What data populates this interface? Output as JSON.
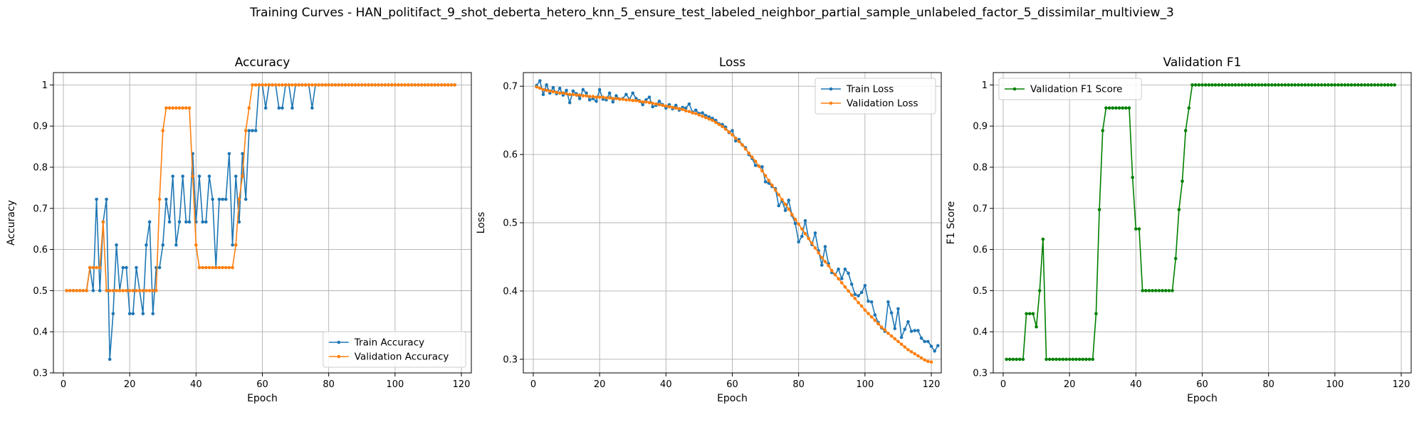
{
  "suptitle": "Training Curves - HAN_politifact_9_shot_deberta_hetero_knn_5_ensure_test_labeled_neighbor_partial_sample_unlabeled_factor_5_dissimilar_multiview_3",
  "colors": {
    "blue": "#1f77b4",
    "orange": "#ff7f0e",
    "green": "#008000",
    "grid": "#b0b0b0"
  },
  "chart_data": [
    {
      "type": "line",
      "title": "Accuracy",
      "xlabel": "Epoch",
      "ylabel": "Accuracy",
      "xlim": [
        -3,
        123
      ],
      "ylim": [
        0.3,
        1.03
      ],
      "xticks": [
        0,
        20,
        40,
        60,
        80,
        100,
        120
      ],
      "yticks": [
        0.3,
        0.4,
        0.5,
        0.6,
        0.7,
        0.8,
        0.9,
        1.0
      ],
      "grid": true,
      "legend_position": "lower-right",
      "x_start": 1,
      "series": [
        {
          "name": "Train Accuracy",
          "color": "#1f77b4",
          "values": [
            0.5,
            0.5,
            0.5,
            0.5,
            0.5,
            0.5,
            0.5,
            0.556,
            0.5,
            0.722,
            0.5,
            0.667,
            0.722,
            0.333,
            0.444,
            0.611,
            0.5,
            0.556,
            0.556,
            0.444,
            0.444,
            0.556,
            0.5,
            0.444,
            0.611,
            0.667,
            0.444,
            0.556,
            0.556,
            0.611,
            0.722,
            0.667,
            0.778,
            0.611,
            0.667,
            0.778,
            0.667,
            0.667,
            0.833,
            0.667,
            0.778,
            0.667,
            0.667,
            0.778,
            0.722,
            0.556,
            0.722,
            0.722,
            0.722,
            0.833,
            0.611,
            0.778,
            0.667,
            0.833,
            0.722,
            0.889,
            0.889,
            0.889,
            1.0,
            1.0,
            0.944,
            1.0,
            1.0,
            1.0,
            0.944,
            0.944,
            1.0,
            1.0,
            0.944,
            1.0,
            1.0,
            1.0,
            1.0,
            1.0,
            0.944,
            1.0,
            1.0,
            1.0,
            1.0,
            1.0,
            1.0,
            1.0,
            1.0,
            1.0,
            1.0,
            1.0,
            1.0,
            1.0,
            1.0,
            1.0,
            1.0,
            1.0,
            1.0,
            1.0,
            1.0,
            1.0,
            1.0,
            1.0,
            1.0,
            1.0,
            1.0,
            1.0,
            1.0,
            1.0,
            1.0,
            1.0,
            1.0,
            1.0,
            1.0,
            1.0,
            1.0,
            1.0,
            1.0,
            1.0,
            1.0,
            1.0,
            1.0,
            1.0
          ]
        },
        {
          "name": "Validation Accuracy",
          "color": "#ff7f0e",
          "values": [
            0.5,
            0.5,
            0.5,
            0.5,
            0.5,
            0.5,
            0.5,
            0.556,
            0.556,
            0.556,
            0.556,
            0.667,
            0.5,
            0.5,
            0.5,
            0.5,
            0.5,
            0.5,
            0.5,
            0.5,
            0.5,
            0.5,
            0.5,
            0.5,
            0.5,
            0.5,
            0.5,
            0.5,
            0.722,
            0.889,
            0.944,
            0.944,
            0.944,
            0.944,
            0.944,
            0.944,
            0.944,
            0.944,
            0.778,
            0.611,
            0.556,
            0.556,
            0.556,
            0.556,
            0.556,
            0.556,
            0.556,
            0.556,
            0.556,
            0.556,
            0.556,
            0.611,
            0.722,
            0.778,
            0.889,
            0.944,
            1.0,
            1.0,
            1.0,
            1.0,
            1.0,
            1.0,
            1.0,
            1.0,
            1.0,
            1.0,
            1.0,
            1.0,
            1.0,
            1.0,
            1.0,
            1.0,
            1.0,
            1.0,
            1.0,
            1.0,
            1.0,
            1.0,
            1.0,
            1.0,
            1.0,
            1.0,
            1.0,
            1.0,
            1.0,
            1.0,
            1.0,
            1.0,
            1.0,
            1.0,
            1.0,
            1.0,
            1.0,
            1.0,
            1.0,
            1.0,
            1.0,
            1.0,
            1.0,
            1.0,
            1.0,
            1.0,
            1.0,
            1.0,
            1.0,
            1.0,
            1.0,
            1.0,
            1.0,
            1.0,
            1.0,
            1.0,
            1.0,
            1.0,
            1.0,
            1.0,
            1.0,
            1.0
          ]
        }
      ]
    },
    {
      "type": "line",
      "title": "Loss",
      "xlabel": "Epoch",
      "ylabel": "Loss",
      "xlim": [
        -3,
        123
      ],
      "ylim": [
        0.28,
        0.72
      ],
      "xticks": [
        0,
        20,
        40,
        60,
        80,
        100,
        120
      ],
      "yticks": [
        0.3,
        0.4,
        0.5,
        0.6,
        0.7
      ],
      "grid": true,
      "legend_position": "upper-right",
      "x_start": 1,
      "series": [
        {
          "name": "Train Loss",
          "color": "#1f77b4",
          "values": [
            0.701,
            0.708,
            0.688,
            0.702,
            0.69,
            0.698,
            0.689,
            0.697,
            0.687,
            0.694,
            0.676,
            0.693,
            0.689,
            0.682,
            0.695,
            0.69,
            0.68,
            0.682,
            0.678,
            0.695,
            0.681,
            0.68,
            0.69,
            0.677,
            0.686,
            0.681,
            0.682,
            0.688,
            0.681,
            0.69,
            0.682,
            0.679,
            0.673,
            0.68,
            0.684,
            0.67,
            0.672,
            0.678,
            0.673,
            0.668,
            0.673,
            0.667,
            0.672,
            0.665,
            0.669,
            0.668,
            0.674,
            0.662,
            0.665,
            0.66,
            0.661,
            0.657,
            0.655,
            0.653,
            0.65,
            0.645,
            0.644,
            0.64,
            0.632,
            0.635,
            0.62,
            0.622,
            0.614,
            0.61,
            0.6,
            0.594,
            0.584,
            0.583,
            0.582,
            0.56,
            0.558,
            0.553,
            0.55,
            0.525,
            0.532,
            0.518,
            0.533,
            0.511,
            0.499,
            0.472,
            0.48,
            0.503,
            0.477,
            0.468,
            0.485,
            0.459,
            0.438,
            0.465,
            0.44,
            0.427,
            0.424,
            0.432,
            0.418,
            0.432,
            0.426,
            0.41,
            0.395,
            0.393,
            0.398,
            0.408,
            0.385,
            0.384,
            0.365,
            0.354,
            0.346,
            0.341,
            0.384,
            0.368,
            0.345,
            0.374,
            0.332,
            0.344,
            0.355,
            0.341,
            0.342,
            0.342,
            0.331,
            0.326,
            0.326,
            0.319,
            0.312,
            0.32
          ]
        },
        {
          "name": "Validation Loss",
          "color": "#ff7f0e",
          "values": [
            0.699,
            0.697,
            0.695,
            0.694,
            0.693,
            0.692,
            0.691,
            0.69,
            0.69,
            0.689,
            0.688,
            0.688,
            0.687,
            0.687,
            0.686,
            0.686,
            0.685,
            0.685,
            0.684,
            0.684,
            0.684,
            0.683,
            0.683,
            0.682,
            0.682,
            0.681,
            0.681,
            0.68,
            0.68,
            0.679,
            0.679,
            0.678,
            0.677,
            0.677,
            0.676,
            0.675,
            0.674,
            0.673,
            0.672,
            0.671,
            0.67,
            0.669,
            0.668,
            0.667,
            0.666,
            0.664,
            0.663,
            0.661,
            0.66,
            0.658,
            0.656,
            0.654,
            0.652,
            0.65,
            0.647,
            0.644,
            0.641,
            0.637,
            0.633,
            0.629,
            0.624,
            0.619,
            0.614,
            0.608,
            0.602,
            0.596,
            0.59,
            0.583,
            0.576,
            0.569,
            0.562,
            0.555,
            0.548,
            0.541,
            0.534,
            0.527,
            0.52,
            0.512,
            0.505,
            0.498,
            0.491,
            0.484,
            0.477,
            0.47,
            0.463,
            0.456,
            0.449,
            0.443,
            0.437,
            0.43,
            0.424,
            0.418,
            0.412,
            0.406,
            0.4,
            0.394,
            0.389,
            0.383,
            0.378,
            0.372,
            0.367,
            0.362,
            0.357,
            0.352,
            0.347,
            0.343,
            0.338,
            0.334,
            0.33,
            0.326,
            0.322,
            0.318,
            0.314,
            0.311,
            0.308,
            0.305,
            0.302,
            0.299,
            0.297,
            0.296
          ]
        }
      ]
    },
    {
      "type": "line",
      "title": "Validation F1",
      "xlabel": "Epoch",
      "ylabel": "F1 Score",
      "xlim": [
        -3,
        123
      ],
      "ylim": [
        0.3,
        1.03
      ],
      "xticks": [
        0,
        20,
        40,
        60,
        80,
        100,
        120
      ],
      "yticks": [
        0.3,
        0.4,
        0.5,
        0.6,
        0.7,
        0.8,
        0.9,
        1.0
      ],
      "grid": true,
      "legend_position": "upper-left",
      "x_start": 1,
      "series": [
        {
          "name": "Validation F1 Score",
          "color": "#008000",
          "values": [
            0.333,
            0.333,
            0.333,
            0.333,
            0.333,
            0.333,
            0.444,
            0.444,
            0.444,
            0.412,
            0.5,
            0.625,
            0.333,
            0.333,
            0.333,
            0.333,
            0.333,
            0.333,
            0.333,
            0.333,
            0.333,
            0.333,
            0.333,
            0.333,
            0.333,
            0.333,
            0.333,
            0.444,
            0.697,
            0.889,
            0.944,
            0.944,
            0.944,
            0.944,
            0.944,
            0.944,
            0.944,
            0.944,
            0.775,
            0.65,
            0.65,
            0.5,
            0.5,
            0.5,
            0.5,
            0.5,
            0.5,
            0.5,
            0.5,
            0.5,
            0.5,
            0.578,
            0.697,
            0.766,
            0.889,
            0.944,
            1.0,
            1.0,
            1.0,
            1.0,
            1.0,
            1.0,
            1.0,
            1.0,
            1.0,
            1.0,
            1.0,
            1.0,
            1.0,
            1.0,
            1.0,
            1.0,
            1.0,
            1.0,
            1.0,
            1.0,
            1.0,
            1.0,
            1.0,
            1.0,
            1.0,
            1.0,
            1.0,
            1.0,
            1.0,
            1.0,
            1.0,
            1.0,
            1.0,
            1.0,
            1.0,
            1.0,
            1.0,
            1.0,
            1.0,
            1.0,
            1.0,
            1.0,
            1.0,
            1.0,
            1.0,
            1.0,
            1.0,
            1.0,
            1.0,
            1.0,
            1.0,
            1.0,
            1.0,
            1.0,
            1.0,
            1.0,
            1.0,
            1.0,
            1.0,
            1.0,
            1.0,
            1.0
          ]
        }
      ]
    }
  ]
}
